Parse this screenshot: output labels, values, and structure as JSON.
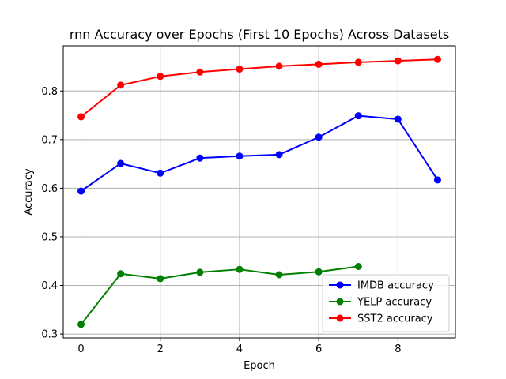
{
  "chart_data": {
    "type": "line",
    "title": "rnn Accuracy over Epochs (First 10 Epochs) Across Datasets",
    "xlabel": "Epoch",
    "ylabel": "Accuracy",
    "xlim": [
      -0.45,
      9.45
    ],
    "ylim": [
      0.292,
      0.893
    ],
    "x_ticks": [
      0,
      2,
      4,
      6,
      8
    ],
    "y_ticks": [
      0.3,
      0.4,
      0.5,
      0.6,
      0.7,
      0.8
    ],
    "grid": true,
    "legend_position": "lower right",
    "series": [
      {
        "name": "IMDB accuracy",
        "color": "#0000ff",
        "x": [
          0,
          1,
          2,
          3,
          4,
          5,
          6,
          7,
          8,
          9
        ],
        "values": [
          0.594,
          0.651,
          0.631,
          0.662,
          0.666,
          0.669,
          0.705,
          0.749,
          0.742,
          0.617
        ]
      },
      {
        "name": "YELP accuracy",
        "color": "#008000",
        "x": [
          0,
          1,
          2,
          3,
          4,
          5,
          6,
          7
        ],
        "values": [
          0.32,
          0.424,
          0.414,
          0.427,
          0.433,
          0.422,
          0.428,
          0.439
        ]
      },
      {
        "name": "SST2 accuracy",
        "color": "#ff0000",
        "x": [
          0,
          1,
          2,
          3,
          4,
          5,
          6,
          7,
          8,
          9
        ],
        "values": [
          0.747,
          0.812,
          0.83,
          0.839,
          0.845,
          0.851,
          0.855,
          0.859,
          0.862,
          0.865
        ]
      }
    ]
  }
}
